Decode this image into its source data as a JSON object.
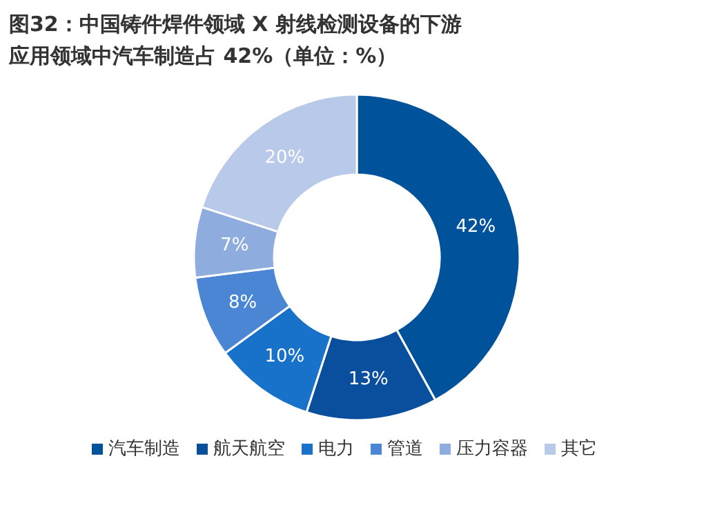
{
  "chart_data": {
    "type": "donut",
    "title": "图32：中国铸件焊件领域 X 射线检测设备的下游应用领域中汽车制造占 42%（单位：%）",
    "categories": [
      "汽车制造",
      "航天航空",
      "电力",
      "管道",
      "压力容器",
      "其它"
    ],
    "values": [
      42,
      13,
      10,
      8,
      7,
      20
    ],
    "value_labels": [
      "42%",
      "13%",
      "10%",
      "8%",
      "7%",
      "20%"
    ],
    "colors": [
      "#00539b",
      "#0a4f9e",
      "#1872c9",
      "#4a86d4",
      "#8eadde",
      "#b9c9e9"
    ],
    "legend": "bottom"
  }
}
